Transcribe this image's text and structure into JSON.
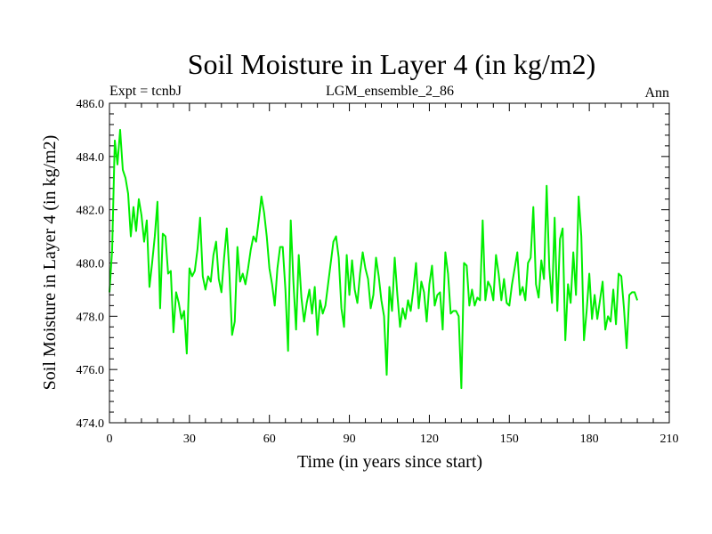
{
  "chart_data": {
    "type": "line",
    "title": "Soil Moisture in Layer 4 (in kg/m2)",
    "left_label": "Expt = tcnbJ",
    "center_label": "LGM_ensemble_2_86",
    "right_label": "Ann",
    "xlabel": "Time (in years since start)",
    "ylabel": "Soil Moisture in Layer 4 (in kg/m2)",
    "xlim": [
      0,
      210
    ],
    "ylim": [
      474.0,
      486.0
    ],
    "x_ticks": [
      0,
      30,
      60,
      90,
      120,
      150,
      180,
      210
    ],
    "x_tick_labels": [
      "0",
      "30",
      "60",
      "90",
      "120",
      "150",
      "180",
      "210"
    ],
    "y_ticks": [
      474.0,
      476.0,
      478.0,
      480.0,
      482.0,
      484.0,
      486.0
    ],
    "y_tick_labels": [
      "474.0",
      "476.0",
      "478.0",
      "480.0",
      "482.0",
      "484.0",
      "486.0"
    ],
    "series_color": "#00ee00",
    "series": [
      {
        "name": "Soil Moisture",
        "x_start": 0,
        "x_step": 1,
        "values": [
          478.9,
          480.5,
          484.6,
          483.7,
          485.0,
          483.5,
          483.2,
          482.6,
          481.0,
          482.1,
          481.2,
          482.4,
          481.8,
          480.8,
          481.6,
          479.1,
          480.0,
          481.0,
          482.3,
          478.3,
          481.1,
          481.0,
          479.6,
          479.7,
          477.4,
          478.9,
          478.5,
          477.9,
          478.2,
          476.6,
          479.8,
          479.5,
          479.7,
          480.5,
          481.7,
          479.5,
          479.0,
          479.5,
          479.3,
          480.3,
          480.8,
          479.4,
          478.9,
          480.2,
          481.3,
          479.6,
          477.3,
          477.8,
          480.6,
          479.3,
          479.6,
          479.2,
          479.8,
          480.5,
          481.0,
          480.8,
          481.6,
          482.5,
          481.9,
          481.0,
          479.8,
          479.2,
          478.4,
          479.8,
          480.6,
          480.6,
          479.0,
          476.7,
          481.6,
          479.3,
          477.5,
          480.3,
          478.7,
          477.8,
          478.5,
          479.0,
          478.1,
          479.1,
          477.3,
          478.6,
          478.1,
          478.4,
          479.2,
          480.0,
          480.8,
          481.0,
          480.2,
          478.3,
          477.6,
          480.3,
          478.8,
          480.1,
          479.0,
          478.5,
          479.6,
          480.4,
          479.8,
          479.4,
          478.3,
          478.8,
          480.2,
          479.5,
          478.6,
          478.0,
          475.8,
          479.1,
          478.2,
          480.2,
          478.8,
          477.6,
          478.3,
          477.9,
          478.6,
          478.2,
          479.0,
          480.0,
          478.3,
          479.3,
          478.9,
          477.8,
          479.2,
          479.9,
          478.4,
          478.8,
          478.9,
          477.5,
          480.4,
          479.6,
          478.1,
          478.2,
          478.2,
          478.0,
          475.3,
          480.0,
          479.9,
          478.4,
          479.0,
          478.4,
          478.7,
          478.6,
          481.6,
          478.6,
          479.3,
          479.1,
          478.6,
          480.3,
          479.6,
          478.6,
          479.4,
          478.5,
          478.4,
          479.2,
          479.8,
          480.4,
          478.8,
          479.1,
          478.6,
          480.0,
          480.2,
          482.1,
          479.2,
          478.7,
          480.1,
          479.4,
          482.9,
          479.8,
          478.5,
          481.7,
          478.2,
          480.9,
          481.3,
          477.1,
          479.2,
          478.5,
          480.4,
          478.8,
          482.5,
          481.0,
          477.1,
          478.2,
          479.6,
          477.9,
          478.8,
          477.9,
          478.6,
          479.3,
          477.5,
          478.0,
          477.8,
          479.0,
          477.7,
          479.6,
          479.5,
          478.3,
          476.8,
          478.8,
          478.9,
          478.9,
          478.6
        ]
      }
    ]
  }
}
